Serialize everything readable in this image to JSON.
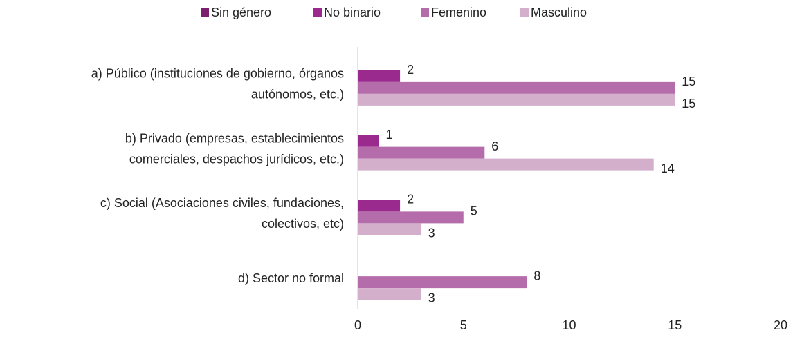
{
  "chart_data": {
    "type": "bar",
    "orientation": "horizontal",
    "categories": [
      [
        "a) Público (instituciones de gobierno, órganos",
        "autónomos, etc.)"
      ],
      [
        "b) Privado (empresas, establecimientos",
        "comerciales, despachos jurídicos, etc.)"
      ],
      [
        "c) Social (Asociaciones civiles, fundaciones,",
        "colectivos, etc)"
      ],
      [
        "d) Sector no formal"
      ]
    ],
    "series": [
      {
        "name": "Sin género",
        "color": "#7b1f6e",
        "values": [
          null,
          null,
          null,
          null
        ]
      },
      {
        "name": "No binario",
        "color": "#9b2a8e",
        "values": [
          2,
          1,
          2,
          null
        ]
      },
      {
        "name": "Femenino",
        "color": "#b46cab",
        "values": [
          15,
          6,
          5,
          8
        ]
      },
      {
        "name": "Masculino",
        "color": "#d4afcc",
        "values": [
          15,
          14,
          3,
          3
        ]
      }
    ],
    "xlim": [
      0,
      20
    ],
    "xticks": [
      0,
      5,
      10,
      15,
      20
    ],
    "legend": "top",
    "grid": false
  }
}
